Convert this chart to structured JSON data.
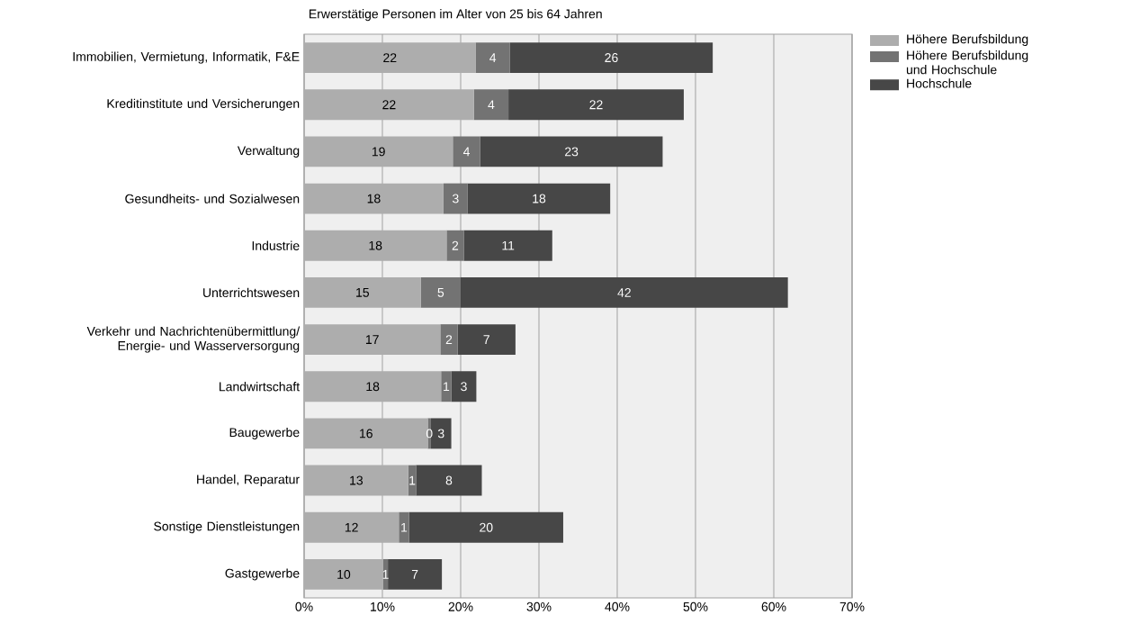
{
  "chart_data": {
    "type": "bar",
    "orientation": "horizontal",
    "stacked": true,
    "title": "Erwerstätige Personen im Alter von 25 bis 64 Jahren",
    "categories": [
      "Immobilien, Vermietung, Informatik, F&E",
      "Kreditinstitute und Versicherungen",
      "Verwaltung",
      "Gesundheits- und Sozialwesen",
      "Industrie",
      "Unterrichtswesen",
      "Verkehr und Nachrichtenübermittlung/ Energie- und Wasserversorgung",
      "Landwirtschaft",
      "Baugewerbe",
      "Handel, Reparatur",
      "Sonstige Dienstleistungen",
      "Gastgewerbe"
    ],
    "series": [
      {
        "name": "Höhere Berufsbildung",
        "color": "#adadad",
        "values": [
          21.9,
          21.7,
          19.0,
          17.8,
          18.2,
          14.9,
          17.4,
          17.5,
          15.8,
          13.3,
          12.1,
          10.1
        ],
        "value_labels": [
          "22",
          "22",
          "19",
          "18",
          "18",
          "15",
          "17",
          "18",
          "16",
          "13",
          "12",
          "10"
        ]
      },
      {
        "name": "Höhere Berufsbildung und Hochschule",
        "color": "#737373",
        "values": [
          4.4,
          4.4,
          3.5,
          3.1,
          2.2,
          5.1,
          2.2,
          1.3,
          0.4,
          1.0,
          1.3,
          0.6
        ],
        "value_labels": [
          "4",
          "4",
          "4",
          "3",
          "2",
          "5",
          "2",
          "1",
          "0",
          "1",
          "1",
          "1"
        ]
      },
      {
        "name": "Hochschule",
        "color": "#474747",
        "values": [
          25.9,
          22.4,
          23.3,
          18.2,
          11.3,
          41.8,
          7.4,
          3.2,
          2.6,
          8.4,
          19.7,
          6.9
        ],
        "value_labels": [
          "26",
          "22",
          "23",
          "18",
          "11",
          "42",
          "7",
          "3",
          "3",
          "8",
          "20",
          "7"
        ]
      }
    ],
    "xlim": [
      0,
      70
    ],
    "xticks": [
      {
        "value": 0,
        "label": "0%"
      },
      {
        "value": 10,
        "label": "10%"
      },
      {
        "value": 20,
        "label": "20%"
      },
      {
        "value": 30,
        "label": "30%"
      },
      {
        "value": 40,
        "label": "40%"
      },
      {
        "value": 50,
        "label": "50%"
      },
      {
        "value": 60,
        "label": "60%"
      },
      {
        "value": 70,
        "label": "70%"
      }
    ],
    "grid": "x",
    "legend": "top right"
  }
}
